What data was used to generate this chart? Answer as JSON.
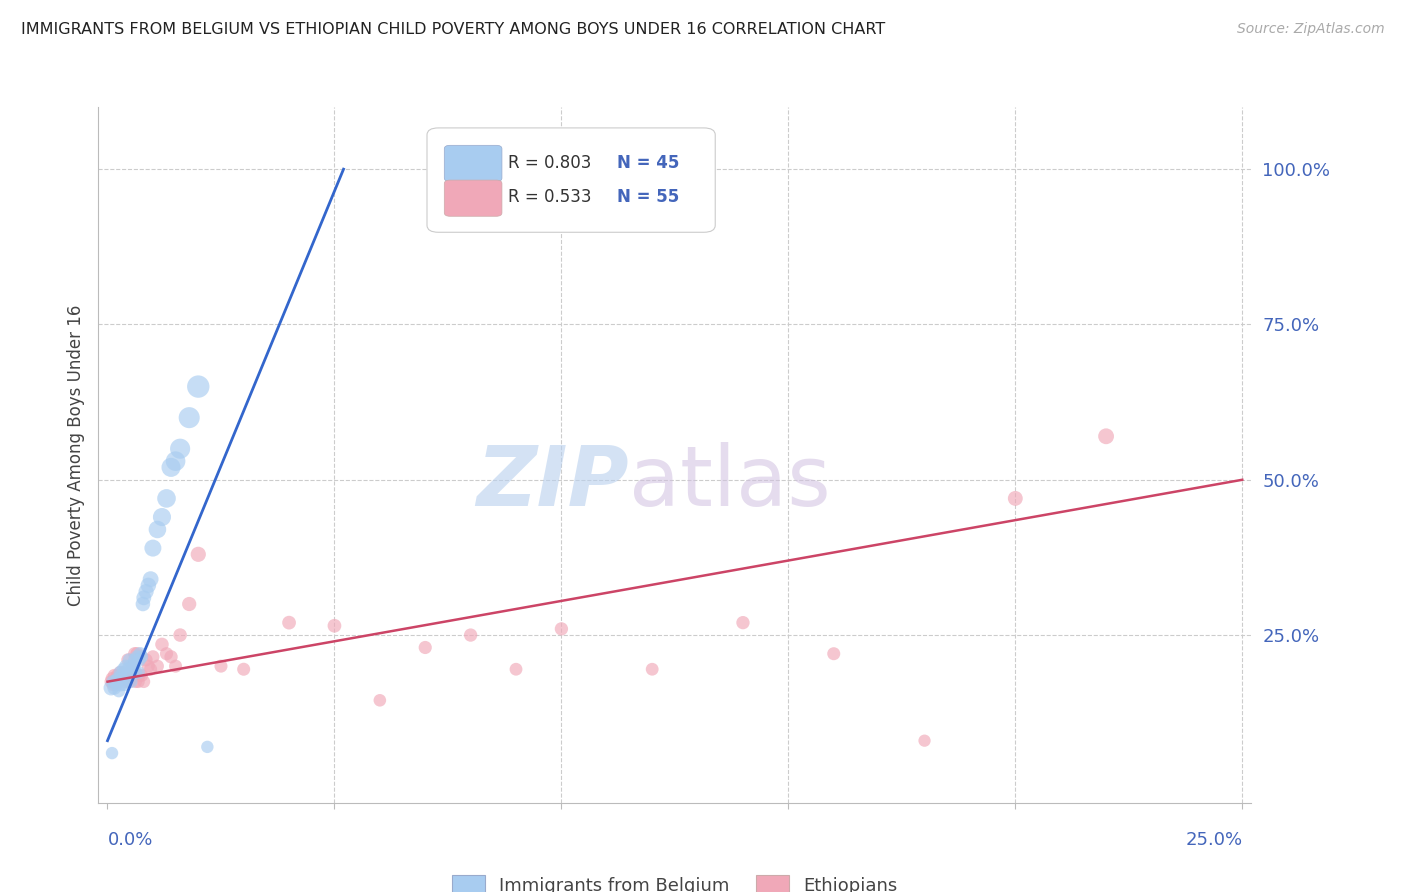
{
  "title": "IMMIGRANTS FROM BELGIUM VS ETHIOPIAN CHILD POVERTY AMONG BOYS UNDER 16 CORRELATION CHART",
  "source": "Source: ZipAtlas.com",
  "ylabel": "Child Poverty Among Boys Under 16",
  "yticks": [
    0.0,
    0.25,
    0.5,
    0.75,
    1.0
  ],
  "ytick_labels": [
    "",
    "25.0%",
    "50.0%",
    "75.0%",
    "100.0%"
  ],
  "xtick_labels": [
    "0.0%",
    "",
    "",
    "",
    "",
    "25.0%"
  ],
  "color_blue": "#a8ccf0",
  "color_pink": "#f0a8b8",
  "color_blue_line": "#3366cc",
  "color_pink_line": "#cc4466",
  "color_axis_text": "#4466bb",
  "color_title": "#222222",
  "background_color": "#ffffff",
  "grid_color": "#cccccc",
  "blue_scatter_x": [
    0.0008,
    0.001,
    0.0012,
    0.0015,
    0.0018,
    0.002,
    0.0022,
    0.0025,
    0.0028,
    0.003,
    0.003,
    0.0032,
    0.0035,
    0.0038,
    0.004,
    0.004,
    0.0042,
    0.0045,
    0.0048,
    0.005,
    0.0052,
    0.0055,
    0.0058,
    0.006,
    0.0062,
    0.0065,
    0.0068,
    0.007,
    0.0072,
    0.0075,
    0.0078,
    0.008,
    0.0085,
    0.009,
    0.0095,
    0.01,
    0.011,
    0.012,
    0.013,
    0.014,
    0.015,
    0.016,
    0.018,
    0.02,
    0.022
  ],
  "blue_scatter_y": [
    0.165,
    0.06,
    0.175,
    0.165,
    0.175,
    0.17,
    0.18,
    0.16,
    0.19,
    0.17,
    0.185,
    0.18,
    0.195,
    0.17,
    0.175,
    0.2,
    0.185,
    0.195,
    0.21,
    0.2,
    0.175,
    0.195,
    0.2,
    0.21,
    0.19,
    0.215,
    0.19,
    0.21,
    0.22,
    0.215,
    0.3,
    0.31,
    0.32,
    0.33,
    0.34,
    0.39,
    0.42,
    0.44,
    0.47,
    0.52,
    0.53,
    0.55,
    0.6,
    0.65,
    0.07
  ],
  "blue_scatter_size": [
    120,
    80,
    90,
    100,
    95,
    90,
    88,
    85,
    88,
    90,
    90,
    88,
    90,
    85,
    88,
    90,
    88,
    90,
    92,
    90,
    85,
    88,
    90,
    92,
    88,
    90,
    88,
    90,
    92,
    90,
    110,
    115,
    120,
    125,
    130,
    150,
    160,
    170,
    180,
    190,
    200,
    210,
    230,
    260,
    80
  ],
  "pink_scatter_x": [
    0.0008,
    0.001,
    0.0012,
    0.0015,
    0.0018,
    0.002,
    0.0022,
    0.0025,
    0.0028,
    0.003,
    0.0032,
    0.0035,
    0.0038,
    0.004,
    0.0042,
    0.0045,
    0.0048,
    0.005,
    0.0052,
    0.0055,
    0.0058,
    0.006,
    0.0062,
    0.0065,
    0.0068,
    0.007,
    0.0075,
    0.008,
    0.0085,
    0.009,
    0.0095,
    0.01,
    0.011,
    0.012,
    0.013,
    0.014,
    0.015,
    0.016,
    0.018,
    0.02,
    0.025,
    0.03,
    0.04,
    0.05,
    0.06,
    0.07,
    0.08,
    0.09,
    0.1,
    0.12,
    0.14,
    0.16,
    0.18,
    0.2,
    0.22
  ],
  "pink_scatter_y": [
    0.175,
    0.18,
    0.17,
    0.185,
    0.175,
    0.18,
    0.185,
    0.175,
    0.19,
    0.18,
    0.185,
    0.18,
    0.19,
    0.175,
    0.18,
    0.21,
    0.175,
    0.19,
    0.18,
    0.2,
    0.185,
    0.22,
    0.175,
    0.22,
    0.175,
    0.185,
    0.185,
    0.175,
    0.21,
    0.2,
    0.195,
    0.215,
    0.2,
    0.235,
    0.22,
    0.215,
    0.2,
    0.25,
    0.3,
    0.38,
    0.2,
    0.195,
    0.27,
    0.265,
    0.145,
    0.23,
    0.25,
    0.195,
    0.26,
    0.195,
    0.27,
    0.22,
    0.08,
    0.47,
    0.57
  ],
  "pink_scatter_size": [
    90,
    88,
    85,
    90,
    88,
    90,
    92,
    88,
    90,
    88,
    90,
    88,
    90,
    85,
    88,
    92,
    85,
    88,
    88,
    90,
    88,
    92,
    85,
    92,
    85,
    88,
    88,
    85,
    90,
    88,
    88,
    90,
    88,
    95,
    90,
    92,
    88,
    95,
    105,
    120,
    88,
    88,
    98,
    98,
    82,
    90,
    92,
    85,
    92,
    85,
    92,
    88,
    78,
    115,
    130
  ],
  "blue_line_x": [
    0.0,
    0.052
  ],
  "blue_line_y": [
    0.08,
    1.0
  ],
  "pink_line_x": [
    0.0,
    0.25
  ],
  "pink_line_y": [
    0.175,
    0.5
  ],
  "xlim": [
    -0.002,
    0.252
  ],
  "ylim": [
    -0.02,
    1.1
  ],
  "xticks": [
    0.0,
    0.05,
    0.1,
    0.15,
    0.2,
    0.25
  ],
  "legend_r1": "R = 0.803",
  "legend_n1": "N = 45",
  "legend_r2": "R = 0.533",
  "legend_n2": "N = 55"
}
